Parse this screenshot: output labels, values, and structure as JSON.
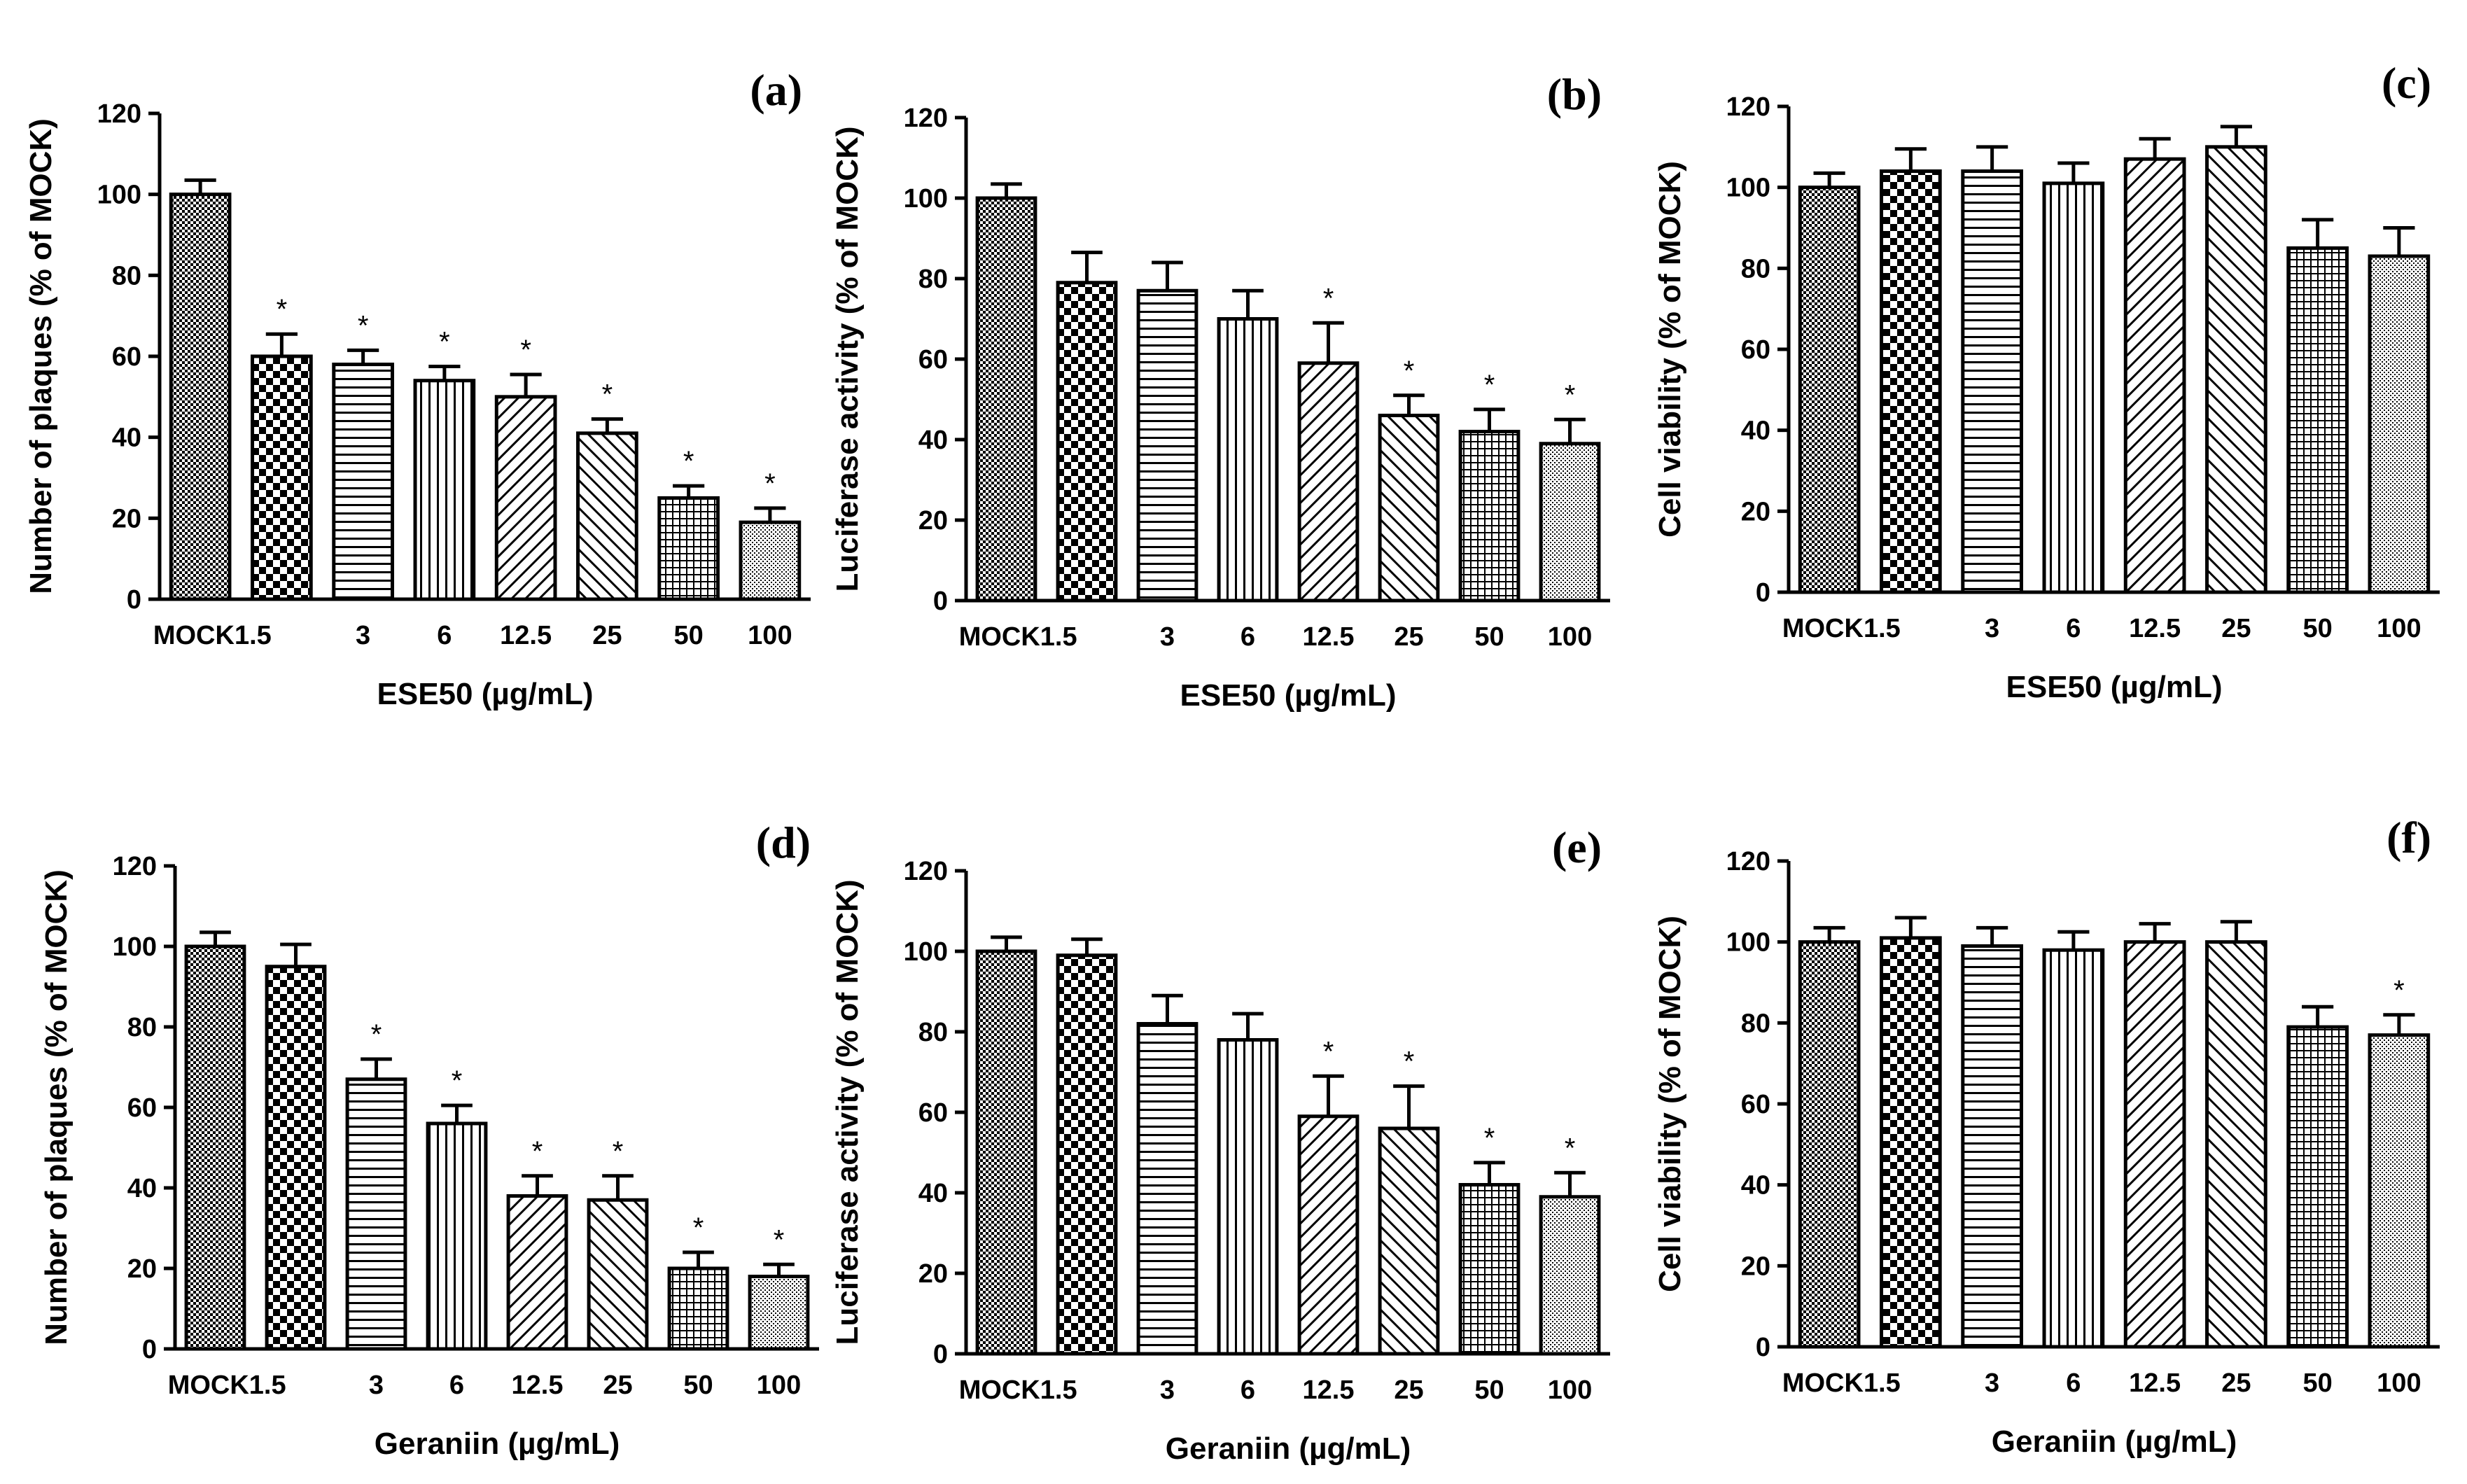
{
  "chart_data": [
    {
      "type": "bar",
      "panel": "(a)",
      "categories": [
        "MOCK",
        "1.5",
        "3",
        "6",
        "12.5",
        "25",
        "50",
        "100"
      ],
      "values": [
        100,
        60,
        58,
        54,
        50,
        41,
        25,
        19
      ],
      "errors": [
        3.5,
        5.5,
        3.5,
        3.5,
        5.5,
        3.5,
        3,
        3.5
      ],
      "significant": [
        false,
        true,
        true,
        true,
        true,
        true,
        true,
        true
      ],
      "xlabel": "ESE50 (µg/mL)",
      "ylabel": "Number of plaques (% of MOCK)",
      "ylim": [
        0,
        120
      ],
      "yticks": [
        "0",
        "20",
        "40",
        "60",
        "80",
        "100",
        "120"
      ]
    },
    {
      "type": "bar",
      "panel": "(b)",
      "categories": [
        "MOCK",
        "1.5",
        "3",
        "6",
        "12.5",
        "25",
        "50",
        "100"
      ],
      "values": [
        100,
        79,
        77,
        70,
        59,
        46,
        42,
        39
      ],
      "errors": [
        3.5,
        7.5,
        7,
        7,
        10,
        5,
        5.5,
        6
      ],
      "significant": [
        false,
        false,
        false,
        false,
        true,
        true,
        true,
        true
      ],
      "xlabel": "ESE50 (µg/mL)",
      "ylabel": "Luciferase activity (% of MOCK)",
      "ylim": [
        0,
        120
      ],
      "yticks": [
        "0",
        "20",
        "40",
        "60",
        "80",
        "100",
        "120"
      ]
    },
    {
      "type": "bar",
      "panel": "(c)",
      "categories": [
        "MOCK",
        "1.5",
        "3",
        "6",
        "12.5",
        "25",
        "50",
        "100"
      ],
      "values": [
        100,
        104,
        104,
        101,
        107,
        110,
        85,
        83
      ],
      "errors": [
        3.5,
        5.5,
        6,
        5,
        5,
        5,
        7,
        7
      ],
      "significant": [
        false,
        false,
        false,
        false,
        false,
        false,
        false,
        false
      ],
      "xlabel": "ESE50 (µg/mL)",
      "ylabel": "Cell viability (% of MOCK)",
      "ylim": [
        0,
        120
      ],
      "yticks": [
        "0",
        "20",
        "40",
        "60",
        "80",
        "100",
        "120"
      ]
    },
    {
      "type": "bar",
      "panel": "(d)",
      "categories": [
        "MOCK",
        "1.5",
        "3",
        "6",
        "12.5",
        "25",
        "50",
        "100"
      ],
      "values": [
        100,
        95,
        67,
        56,
        38,
        37,
        20,
        18
      ],
      "errors": [
        3.5,
        5.5,
        5,
        4.5,
        5,
        6,
        4,
        3
      ],
      "significant": [
        false,
        false,
        true,
        true,
        true,
        true,
        true,
        true
      ],
      "xlabel": "Geraniin (µg/mL)",
      "ylabel": "Number of plaques (% of MOCK)",
      "ylim": [
        0,
        120
      ],
      "yticks": [
        "0",
        "20",
        "40",
        "60",
        "80",
        "100",
        "120"
      ]
    },
    {
      "type": "bar",
      "panel": "(e)",
      "categories": [
        "MOCK",
        "1.5",
        "3",
        "6",
        "12.5",
        "25",
        "50",
        "100"
      ],
      "values": [
        100,
        99,
        82,
        78,
        59,
        56,
        42,
        39
      ],
      "errors": [
        3.5,
        4,
        7,
        6.5,
        10,
        10.5,
        5.5,
        6
      ],
      "significant": [
        false,
        false,
        false,
        false,
        true,
        true,
        true,
        true
      ],
      "xlabel": "Geraniin (µg/mL)",
      "ylabel": "Luciferase activity (% of MOCK)",
      "ylim": [
        0,
        120
      ],
      "yticks": [
        "0",
        "20",
        "40",
        "60",
        "80",
        "100",
        "120"
      ]
    },
    {
      "type": "bar",
      "panel": "(f)",
      "categories": [
        "MOCK",
        "1.5",
        "3",
        "6",
        "12.5",
        "25",
        "50",
        "100"
      ],
      "values": [
        100,
        101,
        99,
        98,
        100,
        100,
        79,
        77
      ],
      "errors": [
        3.5,
        5,
        4.5,
        4.5,
        4.5,
        5,
        5,
        5
      ],
      "significant": [
        false,
        false,
        false,
        false,
        false,
        false,
        false,
        true
      ],
      "xlabel": "Geraniin (µg/mL)",
      "ylabel": "Cell viability (% of MOCK)",
      "ylim": [
        0,
        120
      ],
      "yticks": [
        "0",
        "20",
        "40",
        "60",
        "80",
        "100",
        "120"
      ]
    }
  ],
  "significance_marker": "*",
  "patterns": [
    "pat-dots",
    "pat-checker",
    "pat-hlines",
    "pat-vlines",
    "pat-diag-up",
    "pat-diag-down",
    "pat-grid",
    "pat-fine"
  ],
  "colors": {
    "ink": "#000000",
    "background": "#ffffff"
  }
}
